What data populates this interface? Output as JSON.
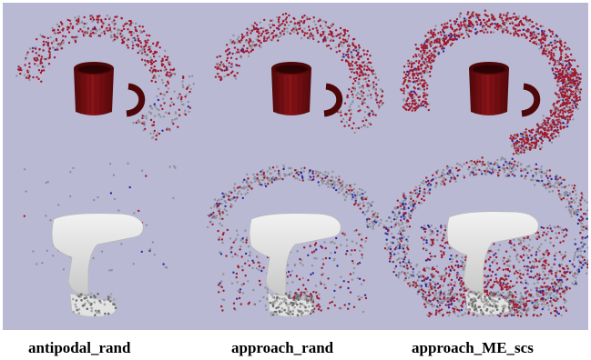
{
  "figure": {
    "background": "#b9b9d4",
    "colors": {
      "point_red": "#9e1b2c",
      "point_gray": "#8f8f96",
      "point_blue": "#2a2aa0",
      "mug_body": "#7a1014",
      "mug_dark": "#4e0709",
      "handle_object": "#e6e6e6"
    },
    "objects": {
      "top_row": "mug",
      "bottom_row": "handle-object"
    }
  },
  "captions": [
    {
      "text": "antipodal_rand"
    },
    {
      "text": "approach_rand"
    },
    {
      "text": "approach_ME_scs"
    }
  ]
}
